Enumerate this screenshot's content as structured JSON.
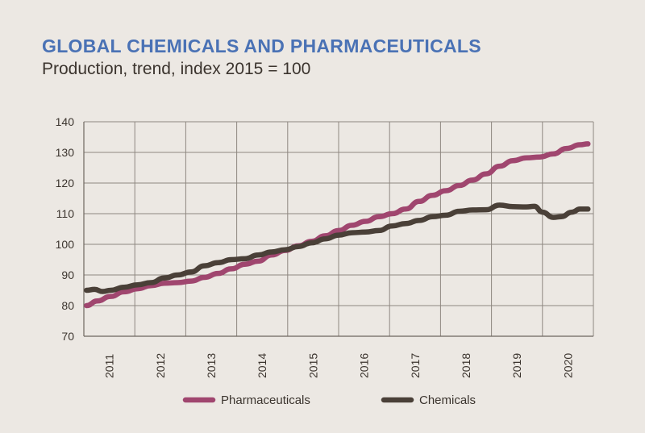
{
  "chart_data": {
    "type": "line",
    "title": "GLOBAL CHEMICALS AND PHARMACEUTICALS",
    "subtitle": "Production, trend, index 2015 = 100",
    "xlabel": "",
    "ylabel": "",
    "ylim": [
      70,
      140
    ],
    "yticks": [
      70,
      80,
      90,
      100,
      110,
      120,
      130,
      140
    ],
    "xlim": [
      2010.75,
      2020.25
    ],
    "categories": [
      "2011",
      "2012",
      "2013",
      "2014",
      "2015",
      "2016",
      "2017",
      "2018",
      "2019",
      "2020"
    ],
    "grid": true,
    "legend_position": "bottom",
    "series": [
      {
        "name": "Pharmaceuticals",
        "color": "#a0466f",
        "x": [
          2010.8,
          2011.0,
          2011.25,
          2011.5,
          2011.75,
          2012.0,
          2012.25,
          2012.5,
          2012.75,
          2013.0,
          2013.25,
          2013.5,
          2013.75,
          2014.0,
          2014.25,
          2014.5,
          2014.75,
          2015.0,
          2015.25,
          2015.5,
          2015.75,
          2016.0,
          2016.25,
          2016.5,
          2016.75,
          2017.0,
          2017.25,
          2017.5,
          2017.75,
          2018.0,
          2018.25,
          2018.5,
          2018.75,
          2019.0,
          2019.25,
          2019.5,
          2019.75,
          2020.0,
          2020.15
        ],
        "values": [
          80.0,
          81.5,
          83.0,
          84.5,
          85.5,
          86.5,
          87.3,
          87.5,
          88.0,
          89.2,
          90.5,
          92.0,
          93.5,
          94.5,
          96.5,
          98.0,
          99.5,
          101.0,
          102.8,
          104.5,
          106.2,
          107.5,
          109.0,
          110.0,
          111.5,
          114.0,
          116.0,
          117.5,
          119.2,
          121.0,
          123.0,
          125.5,
          127.3,
          128.2,
          128.5,
          129.5,
          131.3,
          132.5,
          132.8
        ]
      },
      {
        "name": "Chemicals",
        "color": "#4a4038",
        "x": [
          2010.8,
          2010.95,
          2011.1,
          2011.25,
          2011.5,
          2011.75,
          2012.0,
          2012.25,
          2012.5,
          2012.75,
          2013.0,
          2013.25,
          2013.5,
          2013.75,
          2014.0,
          2014.25,
          2014.5,
          2014.75,
          2015.0,
          2015.25,
          2015.5,
          2015.75,
          2016.0,
          2016.25,
          2016.5,
          2016.75,
          2017.0,
          2017.25,
          2017.5,
          2017.75,
          2018.0,
          2018.25,
          2018.5,
          2018.75,
          2019.0,
          2019.15,
          2019.3,
          2019.5,
          2019.65,
          2019.85,
          2020.0,
          2020.15
        ],
        "values": [
          85.0,
          85.3,
          84.6,
          85.0,
          86.0,
          86.8,
          87.5,
          89.0,
          90.0,
          91.0,
          93.0,
          94.0,
          95.0,
          95.3,
          96.5,
          97.5,
          98.2,
          99.3,
          100.5,
          101.8,
          103.0,
          103.8,
          104.0,
          104.5,
          106.0,
          106.8,
          107.8,
          109.0,
          109.5,
          110.8,
          111.2,
          111.3,
          112.8,
          112.3,
          112.2,
          112.4,
          110.5,
          108.8,
          109.0,
          110.5,
          111.5,
          111.5
        ]
      }
    ]
  }
}
